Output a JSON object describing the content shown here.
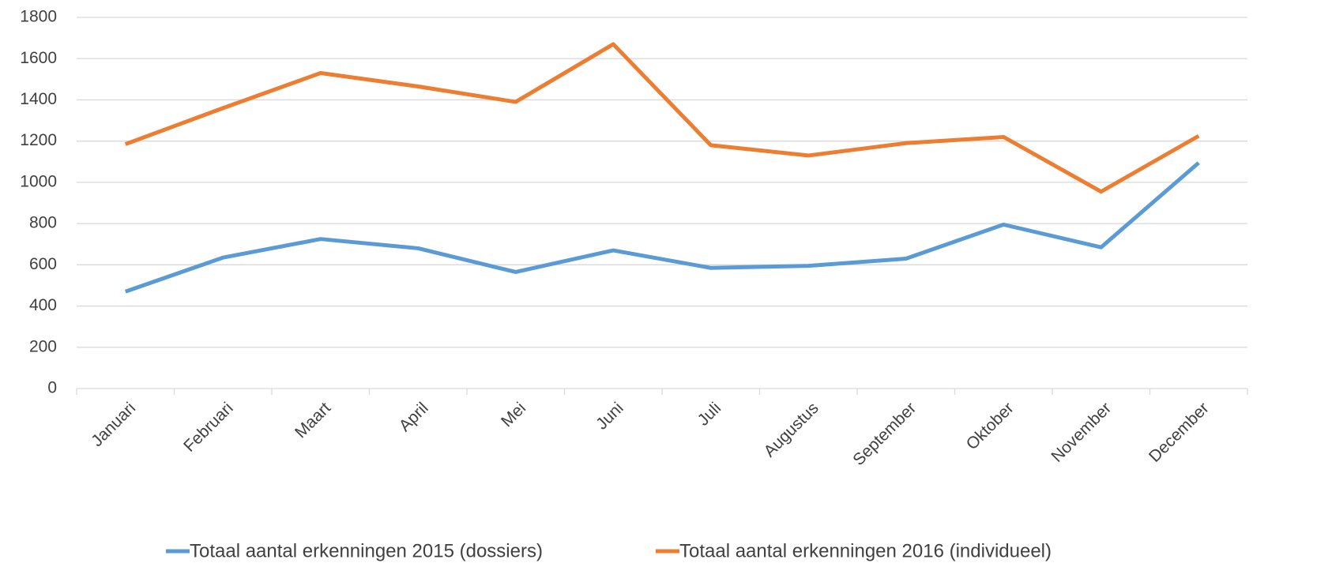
{
  "chart_data": {
    "type": "line",
    "categories": [
      "Januari",
      "Februari",
      "Maart",
      "April",
      "Mei",
      "Juni",
      "Juli",
      "Augustus",
      "September",
      "Oktober",
      "November",
      "December"
    ],
    "series": [
      {
        "name": "Totaal aantal erkenningen 2015 (dossiers)",
        "color": "#5b9bd5",
        "values": [
          470,
          635,
          725,
          680,
          565,
          670,
          585,
          595,
          630,
          795,
          685,
          1095
        ]
      },
      {
        "name": "Totaal aantal erkenningen 2016 (individueel)",
        "color": "#ed7d31",
        "values": [
          1185,
          1360,
          1530,
          1465,
          1390,
          1670,
          1180,
          1130,
          1190,
          1220,
          955,
          1225
        ]
      }
    ],
    "ylim": [
      0,
      1800
    ],
    "yticks": [
      0,
      200,
      400,
      600,
      800,
      1000,
      1200,
      1400,
      1600,
      1800
    ],
    "grid": true,
    "legend": "bottom"
  }
}
